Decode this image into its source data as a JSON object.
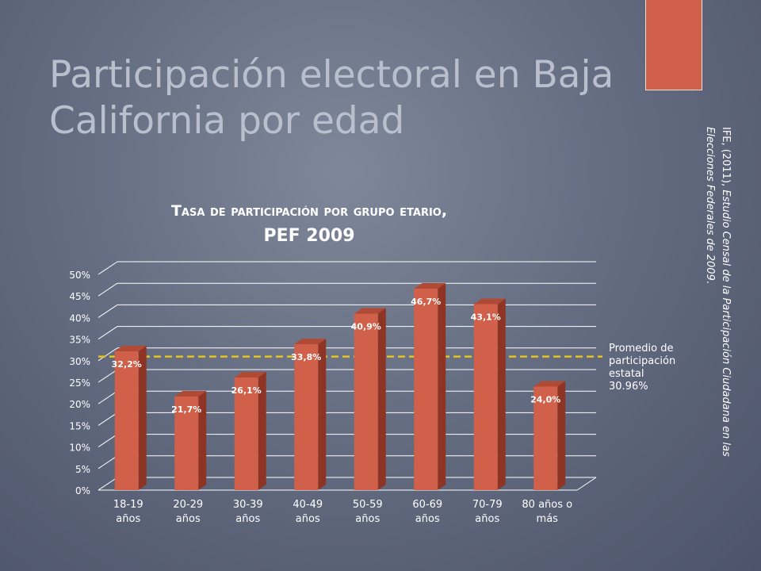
{
  "slide": {
    "title": "Participación electoral en Baja California por edad",
    "citation_plain": "IFE, (2011), ",
    "citation_italic": "Estudio Censal de la Participación Ciudadana en las Elecciones Federales de 2009",
    "citation_end": "."
  },
  "chart_data": {
    "type": "bar",
    "title_line1": "Tasa de participación por grupo etario,",
    "title_line2": "PEF 2009",
    "categories": [
      "18-19 años",
      "20-29 años",
      "30-39 años",
      "40-49 años",
      "50-59 años",
      "60-69 años",
      "70-79 años",
      "80 años o más"
    ],
    "category_lines": [
      [
        "18-19",
        "años"
      ],
      [
        "20-29",
        "años"
      ],
      [
        "30-39",
        "años"
      ],
      [
        "40-49",
        "años"
      ],
      [
        "50-59",
        "años"
      ],
      [
        "60-69",
        "años"
      ],
      [
        "70-79",
        "años"
      ],
      [
        "80 años o",
        "más"
      ]
    ],
    "values": [
      32.2,
      21.7,
      26.1,
      33.8,
      40.9,
      46.7,
      43.1,
      24.0
    ],
    "data_labels": [
      "32,2%",
      "21,7%",
      "26,1%",
      "33,8%",
      "40,9%",
      "46,7%",
      "43,1%",
      "24,0%"
    ],
    "ylim": [
      0,
      50
    ],
    "yticks": [
      "0%",
      "5%",
      "10%",
      "15%",
      "20%",
      "25%",
      "30%",
      "35%",
      "40%",
      "45%",
      "50%"
    ],
    "grid": true,
    "reference_line": {
      "value": 30.96,
      "label_lines": [
        "Promedio de",
        "participación",
        "estatal",
        "30.96%"
      ]
    },
    "colors": {
      "bar_front": "#d0604a",
      "bar_side": "#8e3424",
      "bar_top": "#b04a35",
      "reference_line": "#e8c21a",
      "grid": "#ffffff"
    }
  }
}
